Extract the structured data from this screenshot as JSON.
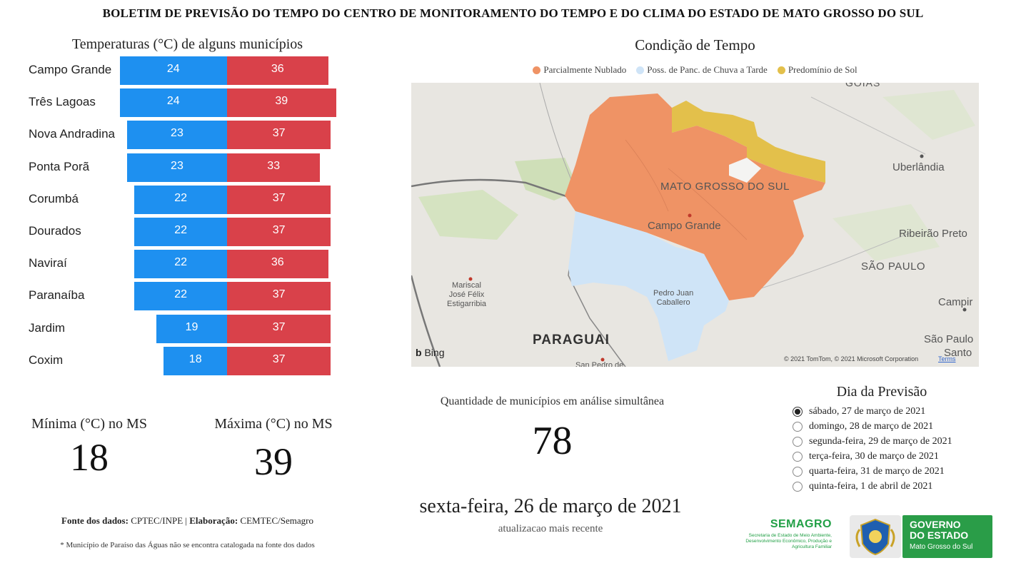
{
  "header": {
    "title": "BOLETIM DE PREVISÃO DO TEMPO DO CENTRO DE MONITORAMENTO DO TEMPO E DO CLIMA DO ESTADO DE MATO GROSSO DO SUL"
  },
  "temperatures": {
    "title": "Temperaturas (°C) de alguns municípios",
    "colors": {
      "min": "#1e90f0",
      "max": "#d9414a"
    },
    "cities": [
      {
        "name": "Campo Grande",
        "min": 24,
        "max": 36
      },
      {
        "name": "Três Lagoas",
        "min": 24,
        "max": 39
      },
      {
        "name": "Nova Andradina",
        "min": 23,
        "max": 37
      },
      {
        "name": "Ponta Porã",
        "min": 23,
        "max": 33
      },
      {
        "name": "Corumbá",
        "min": 22,
        "max": 37
      },
      {
        "name": "Dourados",
        "min": 22,
        "max": 37
      },
      {
        "name": "Naviraí",
        "min": 22,
        "max": 36
      },
      {
        "name": "Paranaíba",
        "min": 22,
        "max": 37
      },
      {
        "name": "Jardim",
        "min": 19,
        "max": 37
      },
      {
        "name": "Coxim",
        "min": 18,
        "max": 37
      }
    ]
  },
  "kpis": {
    "min_label": "Mínima (°C) no MS",
    "min_value": "18",
    "max_label": "Máxima (°C) no MS",
    "max_value": "39"
  },
  "footer": {
    "source_label": "Fonte dos dados:",
    "source_value": " CPTEC/INPE | ",
    "author_label": "Elaboração:",
    "author_value": " CEMTEC/Semagro",
    "note": "* Município de Paraíso das Águas não se encontra catalogada na fonte dos dados"
  },
  "map": {
    "title": "Condição de Tempo",
    "legend": [
      {
        "label": "Parcialmente Nublado",
        "color": "#ef9365"
      },
      {
        "label": "Poss. de Panc. de Chuva a Tarde",
        "color": "#cfe4f7"
      },
      {
        "label": "Predomínio de Sol",
        "color": "#e3c04b"
      }
    ],
    "labels": {
      "goias": "GOIÁS",
      "uberlandia": "Uberlândia",
      "mato_grosso_do_sul": "MATO GROSSO DO SUL",
      "campo_grande": "Campo Grande",
      "ribeirao_preto": "Ribeirão Preto",
      "sao_paulo_state": "SÃO PAULO",
      "mariscal": "Mariscal\nJosé Félix\nEstigarribia",
      "pedro_juan": "Pedro Juan\nCaballero",
      "campinas": "Campir",
      "sao_paulo_city": "São Paulo",
      "santos": "Santo",
      "paraguai": "PARAGUAI",
      "san_pedro": "San Pedro de",
      "bing": "Bing",
      "copyright": "© 2021 TomTom, © 2021 Microsoft Corporation",
      "terms": "Terms"
    }
  },
  "analysis": {
    "label": "Quantidade de municípios em análise simultânea",
    "value": "78"
  },
  "current": {
    "date": "sexta-feira, 26 de março de 2021",
    "subtitle": "atualizacao mais recente"
  },
  "forecast": {
    "title": "Dia da Previsão",
    "options": [
      {
        "label": "sábado, 27 de março de 2021",
        "selected": true
      },
      {
        "label": "domingo, 28 de março de 2021",
        "selected": false
      },
      {
        "label": "segunda-feira, 29 de março de 2021",
        "selected": false
      },
      {
        "label": "terça-feira, 30 de março de 2021",
        "selected": false
      },
      {
        "label": "quarta-feira, 31 de março de 2021",
        "selected": false
      },
      {
        "label": "quinta-feira, 1 de abril de 2021",
        "selected": false
      }
    ]
  },
  "logos": {
    "semagro_name": "SEMAGRO",
    "semagro_sub": "Secretaria de Estado de Meio Ambiente, Desenvolvimento Econômico, Produção e Agricultura Familiar",
    "gov_line1": "GOVERNO",
    "gov_line2": "DO ESTADO",
    "gov_line3": "Mato Grosso do Sul"
  }
}
